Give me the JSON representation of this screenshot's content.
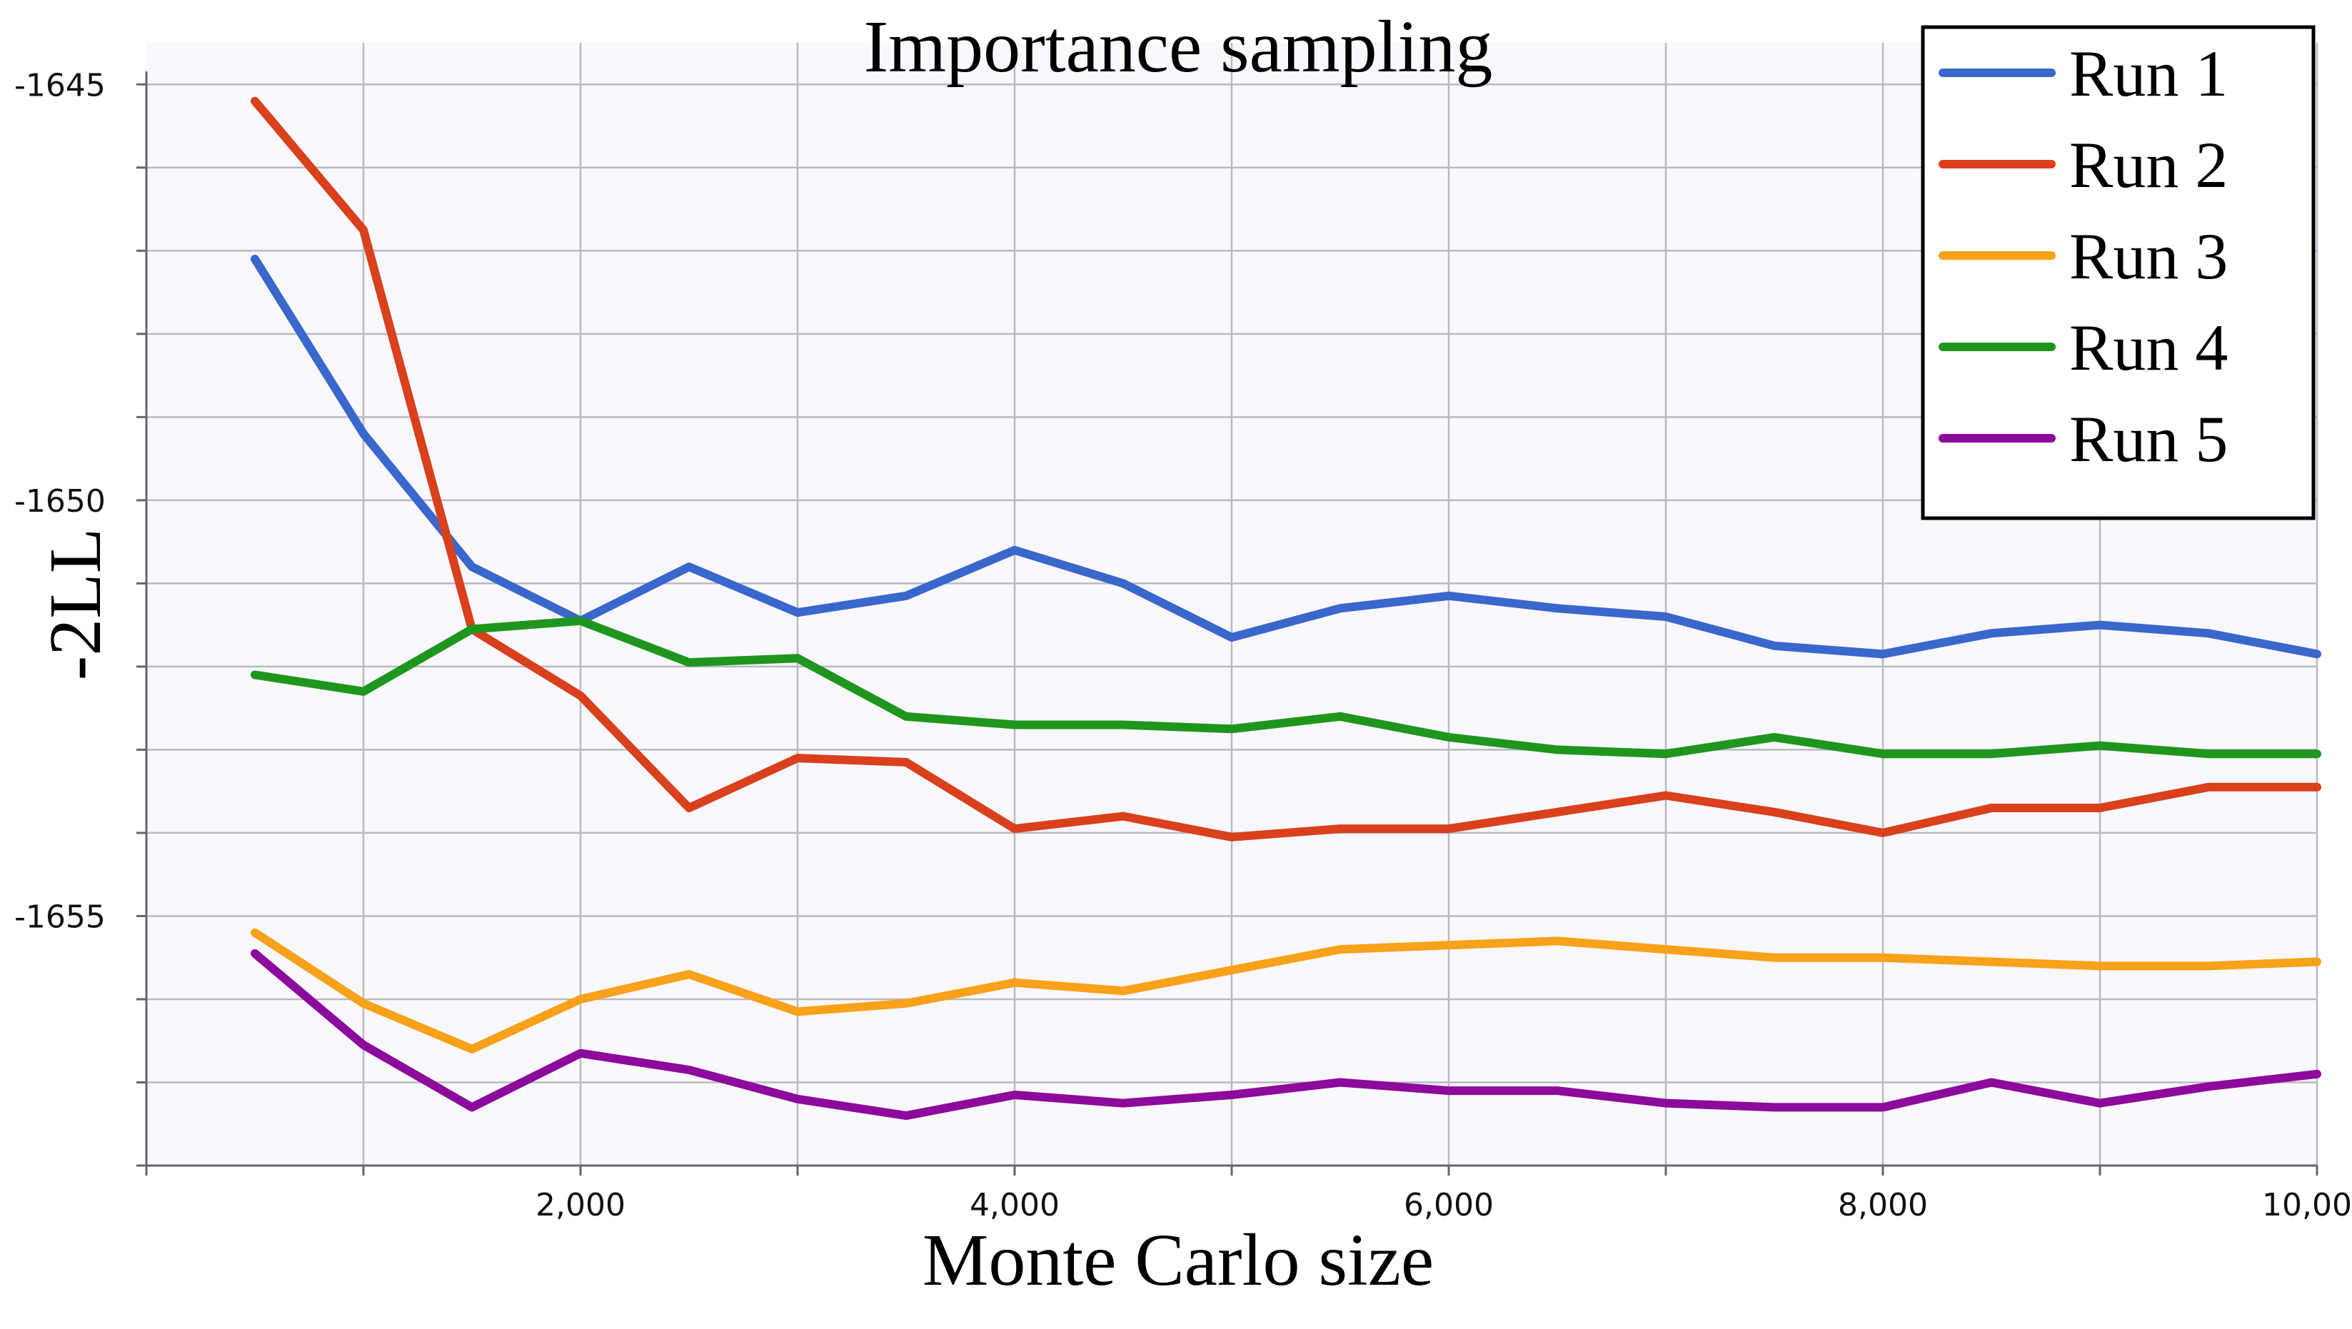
{
  "chart_data": {
    "type": "line",
    "title": "Importance sampling",
    "xlabel": "Monte Carlo size",
    "ylabel": "-2LL",
    "xlim": [
      0,
      10000
    ],
    "ylim": [
      -1658,
      -1644.5
    ],
    "x_ticks": [
      {
        "value": 2000,
        "label": "2,000"
      },
      {
        "value": 4000,
        "label": "4,000"
      },
      {
        "value": 6000,
        "label": "6,000"
      },
      {
        "value": 8000,
        "label": "8,000"
      },
      {
        "value": 10000,
        "label": "10,000"
      }
    ],
    "y_ticks": [
      {
        "value": -1645,
        "label": "-1645"
      },
      {
        "value": -1650,
        "label": "-1650"
      },
      {
        "value": -1655,
        "label": "-1655"
      }
    ],
    "x": [
      500,
      1000,
      1500,
      2000,
      2500,
      3000,
      3500,
      4000,
      4500,
      5000,
      5500,
      6000,
      6500,
      7000,
      7500,
      8000,
      8500,
      9000,
      9500,
      10000
    ],
    "legend_position": "top-right",
    "series": [
      {
        "name": "Run 1",
        "color": "#3a67cc",
        "values": [
          -1647.1,
          -1649.2,
          -1650.8,
          -1651.45,
          -1650.8,
          -1651.35,
          -1651.15,
          -1650.6,
          -1651.0,
          -1651.65,
          -1651.3,
          -1651.15,
          -1651.3,
          -1651.4,
          -1651.75,
          -1651.85,
          -1651.6,
          -1651.5,
          -1651.6,
          -1651.85
        ]
      },
      {
        "name": "Run 2",
        "color": "#d9401c",
        "values": [
          -1645.2,
          -1646.75,
          -1651.55,
          -1652.35,
          -1653.7,
          -1653.1,
          -1653.15,
          -1653.95,
          -1653.8,
          -1654.05,
          -1653.95,
          -1653.95,
          -1653.75,
          -1653.55,
          -1653.75,
          -1654.0,
          -1653.7,
          -1653.7,
          -1653.45,
          -1653.45
        ]
      },
      {
        "name": "Run 3",
        "color": "#f8a11a",
        "values": [
          -1655.2,
          -1656.05,
          -1656.6,
          -1656.0,
          -1655.7,
          -1656.15,
          -1656.05,
          -1655.8,
          -1655.9,
          -1655.65,
          -1655.4,
          -1655.35,
          -1655.3,
          -1655.4,
          -1655.5,
          -1655.5,
          -1655.55,
          -1655.6,
          -1655.6,
          -1655.55
        ]
      },
      {
        "name": "Run 4",
        "color": "#1e961e",
        "values": [
          -1652.1,
          -1652.3,
          -1651.55,
          -1651.45,
          -1651.95,
          -1651.9,
          -1652.6,
          -1652.7,
          -1652.7,
          -1652.75,
          -1652.6,
          -1652.85,
          -1653.0,
          -1653.05,
          -1652.85,
          -1653.05,
          -1653.05,
          -1652.95,
          -1653.05,
          -1653.05
        ]
      },
      {
        "name": "Run 5",
        "color": "#8c0a9c",
        "values": [
          -1655.45,
          -1656.55,
          -1657.3,
          -1656.65,
          -1656.85,
          -1657.2,
          -1657.4,
          -1657.15,
          -1657.25,
          -1657.15,
          -1657.0,
          -1657.1,
          -1657.1,
          -1657.25,
          -1657.3,
          -1657.3,
          -1657.0,
          -1657.25,
          -1657.05,
          -1656.9
        ]
      }
    ]
  }
}
